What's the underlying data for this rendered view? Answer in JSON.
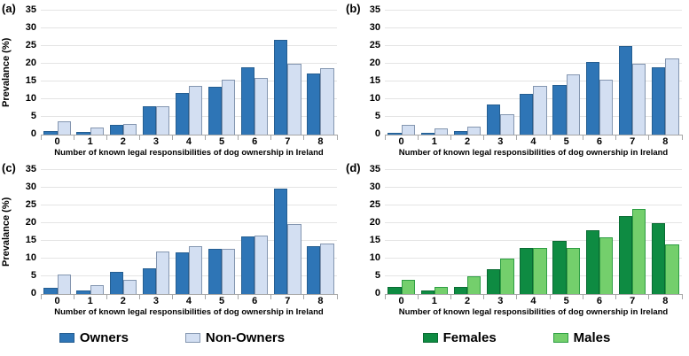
{
  "figure": {
    "y_ticks": [
      0,
      5,
      10,
      15,
      20,
      25,
      30,
      35
    ],
    "gridline_color": "#E4E4E4",
    "axis_color": "#A6A6A6"
  },
  "chart_data": [
    {
      "id": "a",
      "type": "bar",
      "panel_label": "(a)",
      "xlabel": "Number of known legal responsibilities of dog ownership in Ireland",
      "ylabel": "Prevalance (%)",
      "ylim": [
        0,
        35
      ],
      "grid": true,
      "categories": [
        "0",
        "1",
        "2",
        "3",
        "4",
        "5",
        "6",
        "7",
        "8"
      ],
      "series": [
        {
          "name": "Owners",
          "fill": "#2E75B6",
          "border": "#255E91",
          "values": [
            1.0,
            0.7,
            2.8,
            8.0,
            11.7,
            13.5,
            19.0,
            26.7,
            17.3
          ]
        },
        {
          "name": "Non-Owners",
          "fill": "#D3DFF2",
          "border": "#8496B0",
          "values": [
            3.8,
            2.0,
            2.9,
            8.0,
            13.8,
            15.4,
            16.0,
            20.0,
            18.8
          ]
        }
      ]
    },
    {
      "id": "b",
      "type": "bar",
      "panel_label": "(b)",
      "xlabel": "Number of known legal responsibilities of dog ownership in Ireland",
      "ylabel": "",
      "ylim": [
        0,
        35
      ],
      "grid": true,
      "categories": [
        "0",
        "1",
        "2",
        "3",
        "4",
        "5",
        "6",
        "7",
        "8"
      ],
      "series": [
        {
          "name": "Owners",
          "fill": "#2E75B6",
          "border": "#255E91",
          "values": [
            0.5,
            0.5,
            1.0,
            8.4,
            11.6,
            13.9,
            20.5,
            25.0,
            19.0
          ]
        },
        {
          "name": "Non-Owners",
          "fill": "#D3DFF2",
          "border": "#8496B0",
          "values": [
            2.7,
            1.7,
            2.2,
            5.8,
            13.8,
            17.0,
            15.5,
            20.0,
            21.4
          ]
        }
      ]
    },
    {
      "id": "c",
      "type": "bar",
      "panel_label": "(c)",
      "xlabel": "Number of known legal responsibilities of dog ownership in Ireland",
      "ylabel": "Prevalance  (%)",
      "ylim": [
        0,
        35
      ],
      "grid": true,
      "categories": [
        "0",
        "1",
        "2",
        "3",
        "4",
        "5",
        "6",
        "7",
        "8"
      ],
      "series": [
        {
          "name": "Owners",
          "fill": "#2E75B6",
          "border": "#255E91",
          "values": [
            1.8,
            1.0,
            6.3,
            7.2,
            11.8,
            12.7,
            16.3,
            29.8,
            13.6
          ]
        },
        {
          "name": "Non-Owners",
          "fill": "#D3DFF2",
          "border": "#8496B0",
          "values": [
            5.5,
            2.4,
            3.9,
            11.9,
            13.4,
            12.7,
            16.5,
            19.8,
            14.2
          ]
        }
      ]
    },
    {
      "id": "d",
      "type": "bar",
      "panel_label": "(d)",
      "xlabel": "Number of known legal responsibilities of dog ownership in Ireland",
      "ylabel": "",
      "ylim": [
        0,
        35
      ],
      "grid": true,
      "categories": [
        "0",
        "1",
        "2",
        "3",
        "4",
        "5",
        "6",
        "7",
        "8"
      ],
      "series": [
        {
          "name": "Females",
          "fill": "#0E8B42",
          "border": "#0A6B33",
          "values": [
            2,
            1,
            2,
            7,
            13,
            15,
            18,
            22,
            20
          ]
        },
        {
          "name": "Males",
          "fill": "#74CF6C",
          "border": "#2E9E44",
          "values": [
            4,
            2,
            5,
            10,
            13,
            13,
            16,
            24,
            14
          ]
        }
      ]
    }
  ],
  "legends": [
    {
      "items": [
        {
          "label": "Owners",
          "fill": "#2E75B6",
          "border": "#255E91"
        },
        {
          "label": "Non-Owners",
          "fill": "#D3DFF2",
          "border": "#8496B0"
        }
      ]
    },
    {
      "items": [
        {
          "label": "Females",
          "fill": "#0E8B42",
          "border": "#0A6B33"
        },
        {
          "label": "Males",
          "fill": "#74CF6C",
          "border": "#2E9E44"
        }
      ]
    }
  ]
}
